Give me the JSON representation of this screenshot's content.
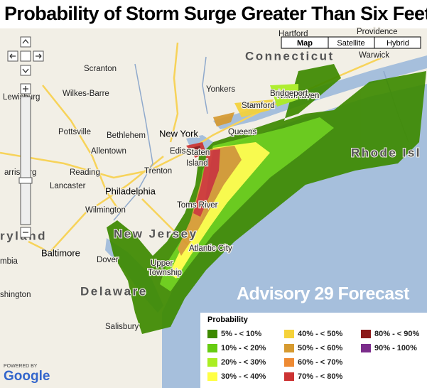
{
  "title": "Probability of Storm Surge Greater Than Six Feet",
  "map_type_buttons": [
    "Map",
    "Satellite",
    "Hybrid"
  ],
  "overlay_label": "Advisory 29 Forecast",
  "legend": {
    "title": "Probability",
    "items": [
      {
        "label": "5% - < 10%",
        "color": "#3d8a00"
      },
      {
        "label": "10% - < 20%",
        "color": "#66cc11"
      },
      {
        "label": "20% - < 30%",
        "color": "#aaee22"
      },
      {
        "label": "30% - < 40%",
        "color": "#ffff44"
      },
      {
        "label": "40% - < 50%",
        "color": "#f5d23a"
      },
      {
        "label": "50% - < 60%",
        "color": "#d69a30"
      },
      {
        "label": "60% - < 70%",
        "color": "#ee8a33"
      },
      {
        "label": "70% - < 80%",
        "color": "#cc3333"
      },
      {
        "label": "80% - < 90%",
        "color": "#8b1a1a"
      },
      {
        "label": "90% - 100%",
        "color": "#7b2d8b"
      }
    ]
  },
  "place_labels": [
    "Hartford",
    "Connecticut",
    "New Haven",
    "Providence",
    "Warwick",
    "Rhode Isl",
    "Scranton",
    "Wilkes-Barre",
    "Lewisburg",
    "Pottsville",
    "Bethlehem",
    "Allentown",
    "Yonkers",
    "Stamford",
    "Bridgeport",
    "New York",
    "Queens",
    "Edison",
    "Staten",
    "Island",
    "Trenton",
    "Reading",
    "arrisburg",
    "Lancaster",
    "Philadelphia",
    "Toms River",
    "Wilmington",
    "New Jersey",
    "ryland",
    "Baltimore",
    "Atlantic City",
    "mbia",
    "Dover",
    "Upper",
    "Township",
    "Delaware",
    "shington",
    "Salisbury"
  ],
  "attribution": {
    "powered_by": "POWERED BY",
    "brand": "Google"
  }
}
